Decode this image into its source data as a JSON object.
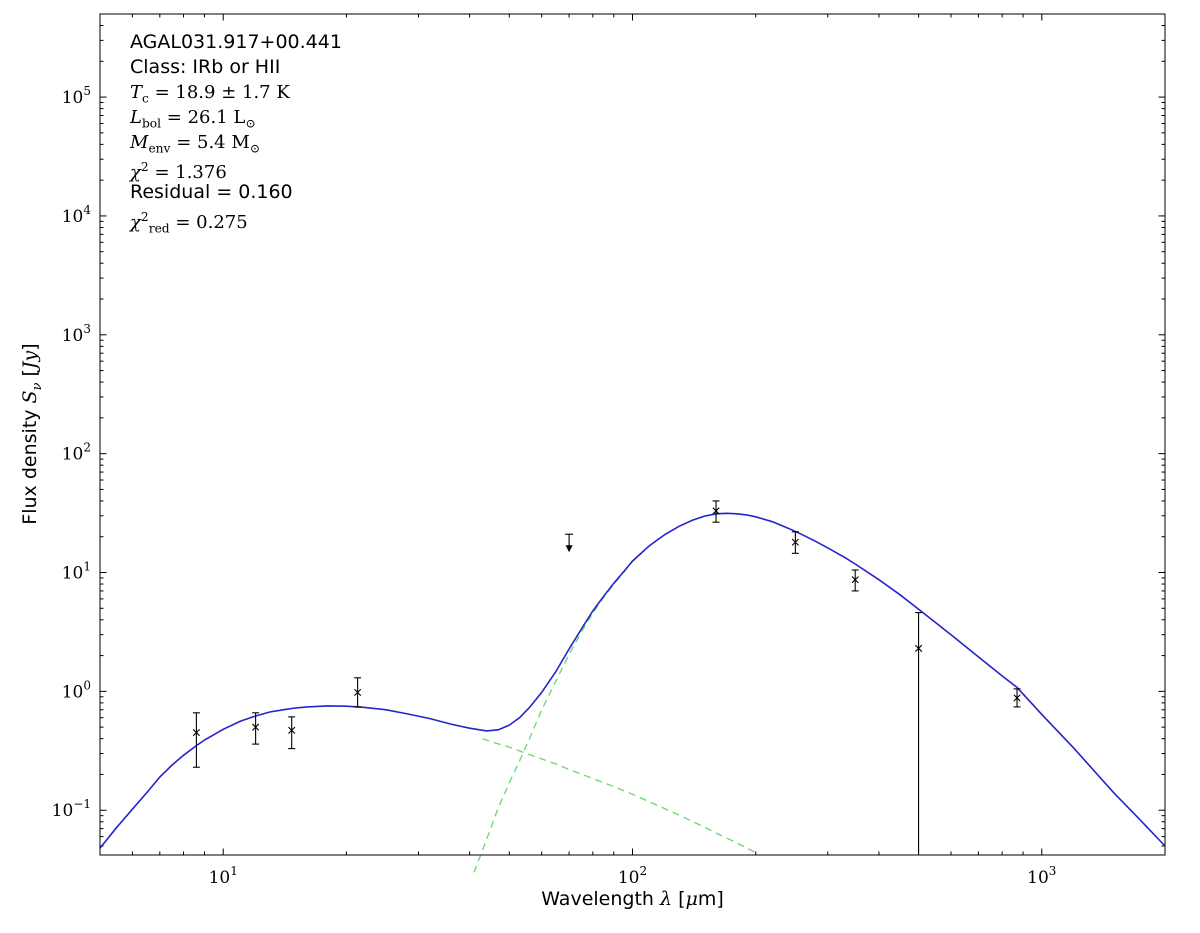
{
  "annotation": {
    "lines": [
      {
        "html": "AGAL031.917+00.441"
      },
      {
        "html": "Class: IRb or HII"
      },
      {
        "html": "<i>T</i><sub>c</sub> = 18.9 ± 1.7 K"
      },
      {
        "html": "<i>L</i><sub>bol</sub> = 26.1 L<sub>⊙</sub>"
      },
      {
        "html": "<i>M</i><sub>env</sub> = 5.4 M<sub>⊙</sub>"
      },
      {
        "html": "<i>χ</i><sup>2</sup> = 1.376"
      },
      {
        "html": "Residual = 0.160"
      },
      {
        "html": "<i>χ</i><sup>2</sup><sub>red</sub> = 0.275"
      }
    ]
  },
  "chart_data": {
    "type": "line",
    "title": "",
    "xlabel_html": "Wavelength <i>λ</i> [<i>μ</i>m]",
    "ylabel_html": "Flux density <i>S</i><sub><i>ν</i></sub> [<i>Jy</i>]",
    "x_scale": "log",
    "y_scale": "log",
    "xlim": [
      5,
      2000
    ],
    "ylim": [
      0.042,
      500000
    ],
    "x_tick_exponents": [
      1,
      2,
      3
    ],
    "y_tick_exponents": [
      -1,
      0,
      1,
      2,
      3,
      4,
      5
    ],
    "grid": false,
    "legend": "none",
    "colors": {
      "model": "#2424cc",
      "components": "#66d966",
      "data": "#000000"
    },
    "series": [
      {
        "name": "warm-component",
        "style": "dashed",
        "color_key": "components",
        "points": [
          [
            43,
            0.4
          ],
          [
            46,
            0.37
          ],
          [
            50,
            0.34
          ],
          [
            55,
            0.3
          ],
          [
            60,
            0.27
          ],
          [
            65,
            0.245
          ],
          [
            70,
            0.22
          ],
          [
            80,
            0.185
          ],
          [
            90,
            0.158
          ],
          [
            100,
            0.136
          ],
          [
            115,
            0.11
          ],
          [
            130,
            0.091
          ],
          [
            150,
            0.072
          ],
          [
            165,
            0.061
          ],
          [
            180,
            0.053
          ],
          [
            200,
            0.044
          ]
        ]
      },
      {
        "name": "cold-component",
        "style": "dashed",
        "color_key": "components",
        "points": [
          [
            41,
            0.03
          ],
          [
            43,
            0.046
          ],
          [
            45,
            0.07
          ],
          [
            47,
            0.105
          ],
          [
            50,
            0.17
          ],
          [
            53,
            0.26
          ],
          [
            56,
            0.4
          ],
          [
            60,
            0.7
          ],
          [
            65,
            1.22
          ],
          [
            70,
            2.05
          ],
          [
            75,
            3.15
          ],
          [
            80,
            4.55
          ],
          [
            85,
            6.15
          ],
          [
            90,
            7.95
          ],
          [
            95,
            9.95
          ],
          [
            100,
            12.35
          ],
          [
            110,
            16.7
          ]
        ]
      },
      {
        "name": "total-model-fit",
        "style": "solid",
        "color_key": "model",
        "points": [
          [
            5,
            0.048
          ],
          [
            5.5,
            0.072
          ],
          [
            6,
            0.102
          ],
          [
            6.5,
            0.14
          ],
          [
            7,
            0.19
          ],
          [
            7.5,
            0.24
          ],
          [
            8,
            0.29
          ],
          [
            8.6,
            0.35
          ],
          [
            9,
            0.39
          ],
          [
            10,
            0.48
          ],
          [
            11,
            0.56
          ],
          [
            12,
            0.62
          ],
          [
            13,
            0.67
          ],
          [
            14,
            0.7
          ],
          [
            15,
            0.725
          ],
          [
            16,
            0.74
          ],
          [
            18,
            0.755
          ],
          [
            20,
            0.75
          ],
          [
            22,
            0.735
          ],
          [
            25,
            0.7
          ],
          [
            28,
            0.65
          ],
          [
            32,
            0.59
          ],
          [
            36,
            0.53
          ],
          [
            40,
            0.49
          ],
          [
            44,
            0.465
          ],
          [
            47,
            0.475
          ],
          [
            50,
            0.52
          ],
          [
            53,
            0.6
          ],
          [
            56,
            0.73
          ],
          [
            60,
            0.98
          ],
          [
            65,
            1.47
          ],
          [
            70,
            2.27
          ],
          [
            75,
            3.35
          ],
          [
            80,
            4.74
          ],
          [
            85,
            6.31
          ],
          [
            90,
            8.11
          ],
          [
            95,
            10.1
          ],
          [
            100,
            12.5
          ],
          [
            110,
            16.8
          ],
          [
            120,
            20.9
          ],
          [
            130,
            24.5
          ],
          [
            140,
            27.5
          ],
          [
            150,
            29.8
          ],
          [
            160,
            31.2
          ],
          [
            170,
            31.5
          ],
          [
            180,
            31.2
          ],
          [
            190,
            30.5
          ],
          [
            200,
            29.4
          ],
          [
            220,
            26.7
          ],
          [
            240,
            23.6
          ],
          [
            260,
            20.8
          ],
          [
            280,
            18.3
          ],
          [
            300,
            16.1
          ],
          [
            330,
            13.4
          ],
          [
            350,
            11.8
          ],
          [
            400,
            8.7
          ],
          [
            450,
            6.5
          ],
          [
            500,
            4.9
          ],
          [
            550,
            3.8
          ],
          [
            600,
            3.0
          ],
          [
            700,
            1.95
          ],
          [
            800,
            1.35
          ],
          [
            870,
            1.08
          ],
          [
            1000,
            0.64
          ],
          [
            1200,
            0.33
          ],
          [
            1500,
            0.14
          ],
          [
            1700,
            0.09
          ],
          [
            2000,
            0.05
          ]
        ]
      }
    ],
    "data_points": [
      {
        "x": 8.6,
        "y": 0.45,
        "ylo": 0.23,
        "yhi": 0.66
      },
      {
        "x": 12.0,
        "y": 0.5,
        "ylo": 0.36,
        "yhi": 0.66
      },
      {
        "x": 14.7,
        "y": 0.47,
        "ylo": 0.33,
        "yhi": 0.61
      },
      {
        "x": 21.3,
        "y": 0.98,
        "ylo": 0.74,
        "yhi": 1.3
      },
      {
        "x": 160,
        "y": 33,
        "ylo": 26.5,
        "yhi": 40
      },
      {
        "x": 250,
        "y": 18,
        "ylo": 14.5,
        "yhi": 22
      },
      {
        "x": 350,
        "y": 8.7,
        "ylo": 7.0,
        "yhi": 10.5
      },
      {
        "x": 500,
        "y": 2.3,
        "ylo": 0.044,
        "yhi": 4.6
      },
      {
        "x": 870,
        "y": 0.88,
        "ylo": 0.74,
        "yhi": 1.05
      }
    ],
    "upper_limits": [
      {
        "x": 70,
        "y": 21
      }
    ]
  }
}
